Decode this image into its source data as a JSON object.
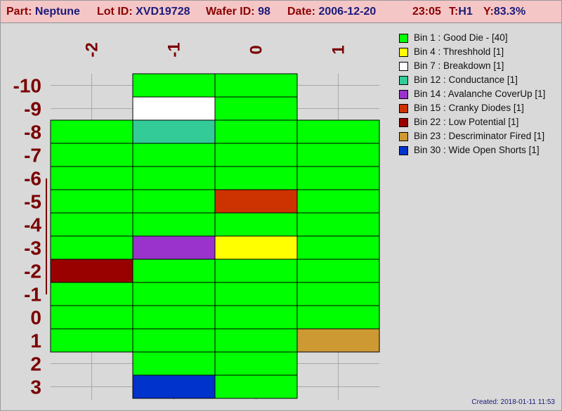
{
  "header": {
    "part_label": "Part:",
    "part_value": "Neptune",
    "lot_label": "Lot ID:",
    "lot_value": "XVD19728",
    "wafer_label": "Wafer ID:",
    "wafer_value": "98",
    "date_label": "Date:",
    "date_value": "2006-12-20",
    "time_value": "23:05",
    "tester_label": "T:",
    "tester_value": "H1",
    "yield_label": "Y:",
    "yield_value": "83.3%"
  },
  "chart_data": {
    "type": "heatmap",
    "x_ticks": [
      "-2",
      "-1",
      "0",
      "1"
    ],
    "y_ticks": [
      "-10",
      "-9",
      "-8",
      "-7",
      "-6",
      "-5",
      "-4",
      "-3",
      "-2",
      "-1",
      "0",
      "1",
      "2",
      "3"
    ],
    "bins": [
      {
        "bin": 1,
        "label": "Bin 1 : Good Die - [40]",
        "color": "#00ff00"
      },
      {
        "bin": 4,
        "label": "Bin 4 : Threshhold [1]",
        "color": "#ffff00"
      },
      {
        "bin": 7,
        "label": "Bin 7 : Breakdown [1]",
        "color": "#ffffff"
      },
      {
        "bin": 12,
        "label": "Bin 12 : Conductance [1]",
        "color": "#33cc99"
      },
      {
        "bin": 14,
        "label": "Bin 14 : Avalanche CoverUp [1]",
        "color": "#9933cc"
      },
      {
        "bin": 15,
        "label": "Bin 15 : Cranky Diodes [1]",
        "color": "#cc3300"
      },
      {
        "bin": 22,
        "label": "Bin 22 : Low Potential [1]",
        "color": "#990000"
      },
      {
        "bin": 23,
        "label": "Bin 23 : Descriminator Fired [1]",
        "color": "#cc9933"
      },
      {
        "bin": 30,
        "label": "Bin 30 : Wide Open Shorts [1]",
        "color": "#0033cc"
      }
    ],
    "dies": [
      {
        "x": -1,
        "y": -10,
        "bin": 1
      },
      {
        "x": 0,
        "y": -10,
        "bin": 1
      },
      {
        "x": -1,
        "y": -9,
        "bin": 7
      },
      {
        "x": 0,
        "y": -9,
        "bin": 1
      },
      {
        "x": -2,
        "y": -8,
        "bin": 1
      },
      {
        "x": -1,
        "y": -8,
        "bin": 12
      },
      {
        "x": 0,
        "y": -8,
        "bin": 1
      },
      {
        "x": 1,
        "y": -8,
        "bin": 1
      },
      {
        "x": -2,
        "y": -7,
        "bin": 1
      },
      {
        "x": -1,
        "y": -7,
        "bin": 1
      },
      {
        "x": 0,
        "y": -7,
        "bin": 1
      },
      {
        "x": 1,
        "y": -7,
        "bin": 1
      },
      {
        "x": -2,
        "y": -6,
        "bin": 1
      },
      {
        "x": -1,
        "y": -6,
        "bin": 1
      },
      {
        "x": 0,
        "y": -6,
        "bin": 1
      },
      {
        "x": 1,
        "y": -6,
        "bin": 1
      },
      {
        "x": -2,
        "y": -5,
        "bin": 1
      },
      {
        "x": -1,
        "y": -5,
        "bin": 1
      },
      {
        "x": 0,
        "y": -5,
        "bin": 15
      },
      {
        "x": 1,
        "y": -5,
        "bin": 1
      },
      {
        "x": -2,
        "y": -4,
        "bin": 1
      },
      {
        "x": -1,
        "y": -4,
        "bin": 1
      },
      {
        "x": 0,
        "y": -4,
        "bin": 1
      },
      {
        "x": 1,
        "y": -4,
        "bin": 1
      },
      {
        "x": -2,
        "y": -3,
        "bin": 1
      },
      {
        "x": -1,
        "y": -3,
        "bin": 14
      },
      {
        "x": 0,
        "y": -3,
        "bin": 4
      },
      {
        "x": 1,
        "y": -3,
        "bin": 1
      },
      {
        "x": -2,
        "y": -2,
        "bin": 22
      },
      {
        "x": -1,
        "y": -2,
        "bin": 1
      },
      {
        "x": 0,
        "y": -2,
        "bin": 1
      },
      {
        "x": 1,
        "y": -2,
        "bin": 1
      },
      {
        "x": -2,
        "y": -1,
        "bin": 1
      },
      {
        "x": -1,
        "y": -1,
        "bin": 1
      },
      {
        "x": 0,
        "y": -1,
        "bin": 1
      },
      {
        "x": 1,
        "y": -1,
        "bin": 1
      },
      {
        "x": -2,
        "y": 0,
        "bin": 1
      },
      {
        "x": -1,
        "y": 0,
        "bin": 1
      },
      {
        "x": 0,
        "y": 0,
        "bin": 1
      },
      {
        "x": 1,
        "y": 0,
        "bin": 1
      },
      {
        "x": -2,
        "y": 1,
        "bin": 1
      },
      {
        "x": -1,
        "y": 1,
        "bin": 1
      },
      {
        "x": 0,
        "y": 1,
        "bin": 1
      },
      {
        "x": 1,
        "y": 1,
        "bin": 23
      },
      {
        "x": -1,
        "y": 2,
        "bin": 1
      },
      {
        "x": 0,
        "y": 2,
        "bin": 1
      },
      {
        "x": -1,
        "y": 3,
        "bin": 30
      },
      {
        "x": 0,
        "y": 3,
        "bin": 1
      }
    ],
    "grid": true
  },
  "footer": {
    "created": "Created: 2018-01-11 11:53"
  }
}
